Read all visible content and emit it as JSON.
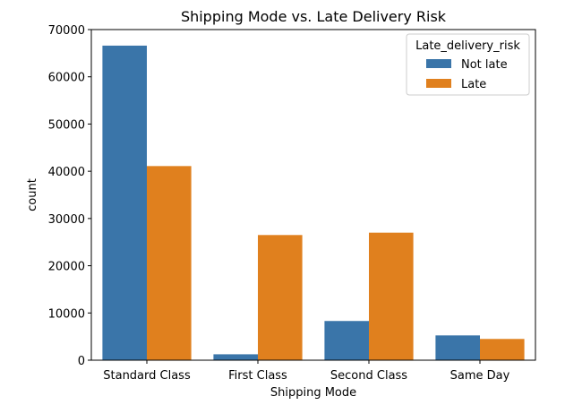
{
  "chart_data": {
    "type": "bar",
    "title": "Shipping Mode vs. Late Delivery Risk",
    "xlabel": "Shipping Mode",
    "ylabel": "count",
    "categories": [
      "Standard Class",
      "First Class",
      "Second Class",
      "Same Day"
    ],
    "series": [
      {
        "name": "Not late",
        "color": "#3a75a9",
        "values": [
          66600,
          1250,
          8300,
          5250
        ]
      },
      {
        "name": "Late",
        "color": "#e0801e",
        "values": [
          41100,
          26500,
          27000,
          4500
        ]
      }
    ],
    "ylim": [
      0,
      70000
    ],
    "yticks": [
      0,
      10000,
      20000,
      30000,
      40000,
      50000,
      60000,
      70000
    ],
    "legend": {
      "title": "Late_delivery_risk",
      "position": "top-right"
    },
    "grid": false
  }
}
